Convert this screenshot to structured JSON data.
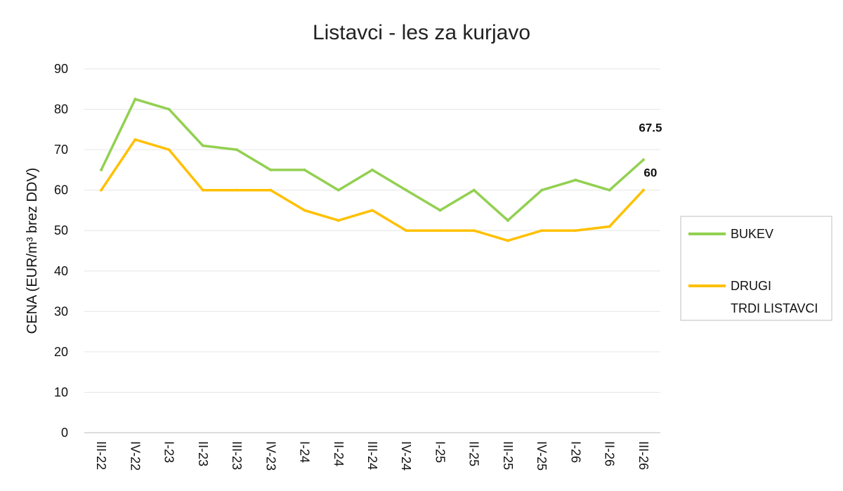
{
  "chart_data": {
    "type": "line",
    "title": "Listavci - les za kurjavo",
    "xlabel": "",
    "ylabel": "CENA (EUR/m³ brez DDV)",
    "ylim": [
      0,
      90
    ],
    "yticks": [
      0,
      10,
      20,
      30,
      40,
      50,
      60,
      70,
      80,
      90
    ],
    "grid": true,
    "legend_position": "right",
    "categories": [
      "III-22",
      "IV-22",
      "I-23",
      "II-23",
      "III-23",
      "IV-23",
      "I-24",
      "II-24",
      "III-24",
      "IV-24",
      "I-25",
      "II-25",
      "III-25",
      "IV-25",
      "I-26",
      "II-26",
      "III-26"
    ],
    "series": [
      {
        "name": "BUKEV",
        "color": "#92d050",
        "values": [
          65,
          82.5,
          80,
          71,
          70,
          65,
          65,
          60,
          65,
          60,
          55,
          60,
          52.5,
          60,
          62.5,
          60,
          67.5
        ],
        "last_label": "67.5"
      },
      {
        "name": "DRUGI TRDI LISTAVCI",
        "legend_lines": [
          "DRUGI",
          "TRDI LISTAVCI"
        ],
        "color": "#ffc000",
        "values": [
          60,
          72.5,
          70,
          60,
          60,
          60,
          55,
          52.5,
          55,
          50,
          50,
          50,
          47.5,
          50,
          50,
          51,
          60
        ],
        "last_label": "60"
      }
    ]
  }
}
